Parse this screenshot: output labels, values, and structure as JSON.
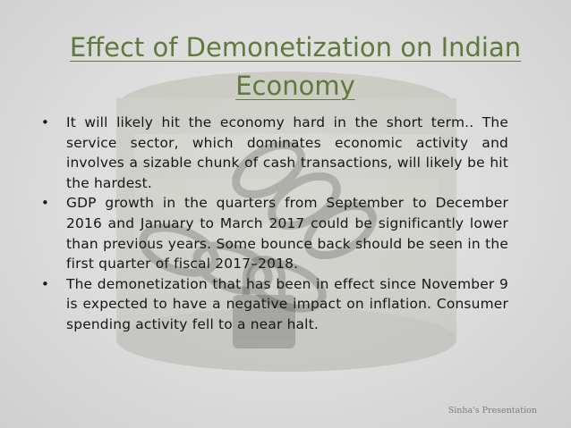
{
  "slide": {
    "title": "Effect of Demonetization on Indian Economy",
    "bullets": [
      "It will likely hit the economy hard in the short term.. The service sector, which dominates economic activity and involves a sizable chunk of cash transactions, will likely be hit the hardest.",
      "GDP growth in the quarters from September to December 2016 and January to March 2017 could be significantly lower than previous years. Some bounce back should be seen in the first quarter of fiscal 2017–2018.",
      "The demonetization that has been in effect since November 9 is expected to have a negative impact on inflation. Consumer spending activity fell to a near halt."
    ],
    "bullet_symbol": "•",
    "footer": "Sinha's Presentation"
  },
  "background": {
    "description_icon": "chained-banknotes-image",
    "colors": {
      "title": "#5f7a3a",
      "text": "#161616"
    }
  }
}
